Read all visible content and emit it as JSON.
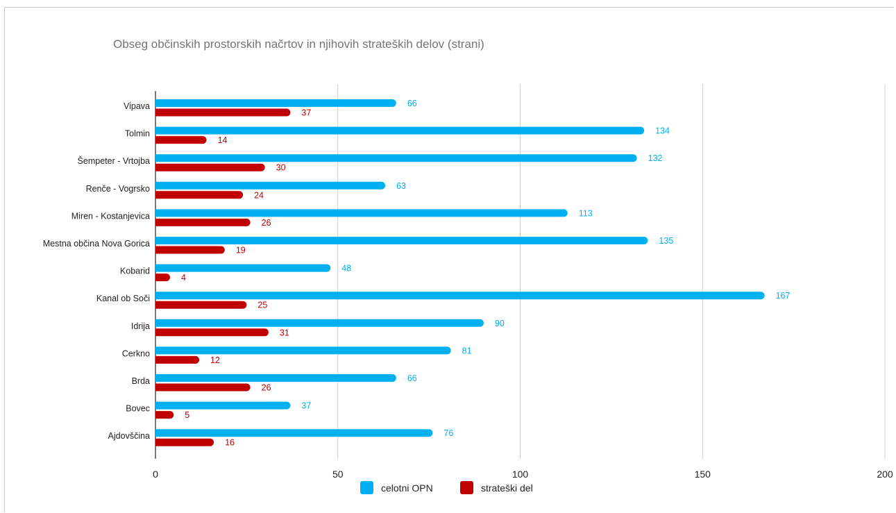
{
  "chart_data": {
    "type": "bar",
    "orientation": "horizontal",
    "title": "Obseg občinskih prostorskih načrtov in njihovih strateških delov (strani)",
    "xlabel": "",
    "ylabel": "",
    "xlim": [
      0,
      200
    ],
    "x_ticks": [
      "0",
      "50",
      "100",
      "150",
      "200"
    ],
    "grid": true,
    "legend_position": "bottom",
    "categories": [
      "Vipava",
      "Tolmin",
      "Šempeter - Vrtojba",
      "Renče - Vogrsko",
      "Miren - Kostanjevica",
      "Mestna občina Nova Gorica",
      "Kobarid",
      "Kanal ob Soči",
      "Idrija",
      "Cerkno",
      "Brda",
      "Bovec",
      "Ajdovščina"
    ],
    "series": [
      {
        "name": "celotni OPN",
        "color": "#00b0f0",
        "values": [
          66,
          134,
          132,
          63,
          113,
          135,
          48,
          167,
          90,
          81,
          66,
          37,
          76
        ]
      },
      {
        "name": "strateški del",
        "color": "#c00000",
        "values": [
          37,
          14,
          30,
          24,
          26,
          19,
          4,
          25,
          31,
          12,
          26,
          5,
          16
        ]
      }
    ]
  }
}
